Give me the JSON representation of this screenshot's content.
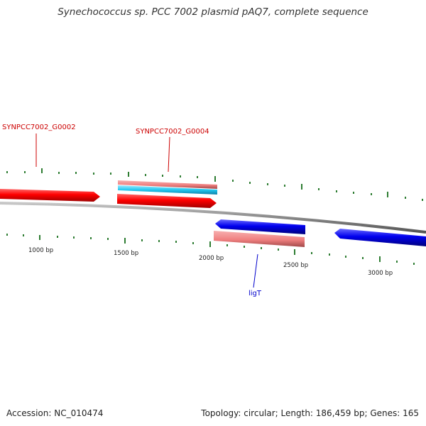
{
  "title": "Synechococcus sp. PCC 7002 plasmid pAQ7, complete sequence",
  "accession": "Accession: NC_010474",
  "stats": "Topology: circular; Length: 186,459 bp; Genes: 165",
  "colors": {
    "forward_cds": "#ff0000",
    "reverse_cds": "#0000ee",
    "forward_gene": "#f08080",
    "cyan_feature": "#22c8f0",
    "backbone": "#808080",
    "tick": "#2e7d32",
    "label_forward": "#cc0000",
    "label_reverse": "#0000cc"
  },
  "gene_labels": {
    "g0002": "SYNPCC7002_G0002",
    "g0004": "SYNPCC7002_G0004",
    "ligT": "ligT"
  },
  "bp_labels": [
    "1000 bp",
    "1500 bp",
    "2000 bp",
    "2500 bp",
    "3000 bp"
  ]
}
